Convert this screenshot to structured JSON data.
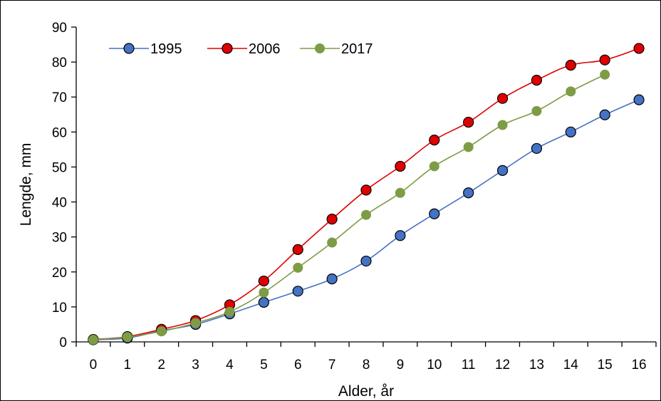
{
  "chart_data": {
    "type": "line",
    "title": "",
    "xlabel": "Alder, år",
    "ylabel": "Lengde, mm",
    "x": [
      0,
      1,
      2,
      3,
      4,
      5,
      6,
      7,
      8,
      9,
      10,
      11,
      12,
      13,
      14,
      15,
      16
    ],
    "xlim": [
      -0.5,
      16.5
    ],
    "ylim": [
      0,
      90
    ],
    "yticks": [
      0,
      10,
      20,
      30,
      40,
      50,
      60,
      70,
      80,
      90
    ],
    "grid": false,
    "legend_position": "top-left",
    "series": [
      {
        "name": "1995",
        "color": "#4472C4",
        "line_color": "#4472C4",
        "values": [
          0.6,
          1.1,
          3.2,
          5.0,
          8.0,
          11.3,
          14.5,
          18.0,
          23.1,
          30.4,
          36.6,
          42.6,
          49.0,
          55.3,
          60.0,
          64.9,
          69.2
        ]
      },
      {
        "name": "2006",
        "color": "#E00000",
        "line_color": "#E00000",
        "values": [
          0.7,
          1.5,
          3.6,
          6.1,
          10.6,
          17.4,
          26.4,
          35.1,
          43.4,
          50.2,
          57.7,
          62.8,
          69.6,
          74.8,
          79.1,
          80.6,
          83.9
        ]
      },
      {
        "name": "2017",
        "color": "#7E9C45",
        "line_color": "#7E9C45",
        "values": [
          0.6,
          1.4,
          3.0,
          5.4,
          8.6,
          14.1,
          21.2,
          28.4,
          36.3,
          42.6,
          50.2,
          55.7,
          62.0,
          66.0,
          71.6,
          76.4,
          null
        ]
      }
    ]
  }
}
